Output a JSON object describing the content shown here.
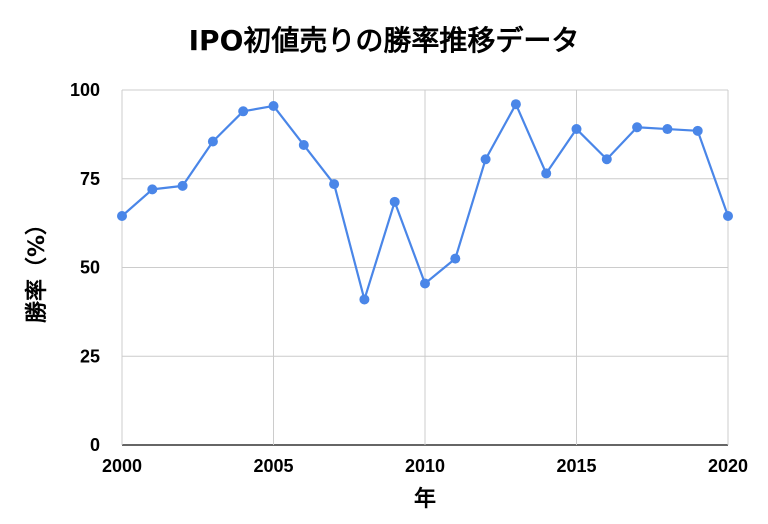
{
  "chart_data": {
    "type": "line",
    "title": "IPO初値売りの勝率推移データ",
    "xlabel": "年",
    "ylabel": "勝率（%）",
    "x": [
      2000,
      2001,
      2002,
      2003,
      2004,
      2005,
      2006,
      2007,
      2008,
      2009,
      2010,
      2011,
      2012,
      2013,
      2014,
      2015,
      2016,
      2017,
      2018,
      2019,
      2020
    ],
    "series": [
      {
        "values": [
          64.5,
          72,
          73,
          85.5,
          94,
          95.5,
          84.5,
          73.5,
          41,
          68.5,
          45.5,
          52.5,
          80.5,
          96,
          76.5,
          89,
          80.5,
          89.5,
          89,
          88.5,
          64.5
        ],
        "color": "#4a86e8"
      }
    ],
    "xlim": [
      2000,
      2020
    ],
    "ylim": [
      0,
      100
    ],
    "xticks": [
      "2000",
      "2005",
      "2010",
      "2015",
      "2020"
    ],
    "yticks": [
      "0",
      "25",
      "50",
      "75",
      "100"
    ],
    "grid": true,
    "legend": "none"
  }
}
